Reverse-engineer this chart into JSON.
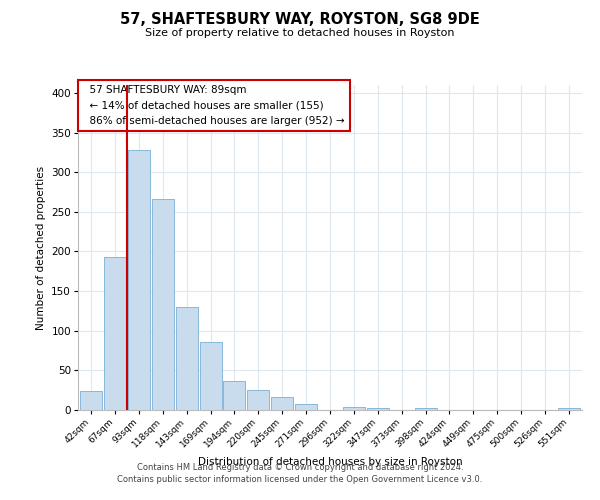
{
  "title": "57, SHAFTESBURY WAY, ROYSTON, SG8 9DE",
  "subtitle": "Size of property relative to detached houses in Royston",
  "xlabel": "Distribution of detached houses by size in Royston",
  "ylabel": "Number of detached properties",
  "bar_color": "#c8dced",
  "bar_edge_color": "#7aafd4",
  "background_color": "#ffffff",
  "grid_color": "#dde8f0",
  "categories": [
    "42sqm",
    "67sqm",
    "93sqm",
    "118sqm",
    "143sqm",
    "169sqm",
    "194sqm",
    "220sqm",
    "245sqm",
    "271sqm",
    "296sqm",
    "322sqm",
    "347sqm",
    "373sqm",
    "398sqm",
    "424sqm",
    "449sqm",
    "475sqm",
    "500sqm",
    "526sqm",
    "551sqm"
  ],
  "values": [
    24,
    193,
    328,
    266,
    130,
    86,
    37,
    25,
    17,
    8,
    0,
    4,
    3,
    0,
    3,
    0,
    0,
    0,
    0,
    0,
    2
  ],
  "marker_color": "#cc0000",
  "marker_label": "57 SHAFTESBURY WAY: 89sqm",
  "annotation_line1": "← 14% of detached houses are smaller (155)",
  "annotation_line2": "86% of semi-detached houses are larger (952) →",
  "ylim": [
    0,
    410
  ],
  "yticks": [
    0,
    50,
    100,
    150,
    200,
    250,
    300,
    350,
    400
  ],
  "footer1": "Contains HM Land Registry data © Crown copyright and database right 2024.",
  "footer2": "Contains public sector information licensed under the Open Government Licence v3.0."
}
